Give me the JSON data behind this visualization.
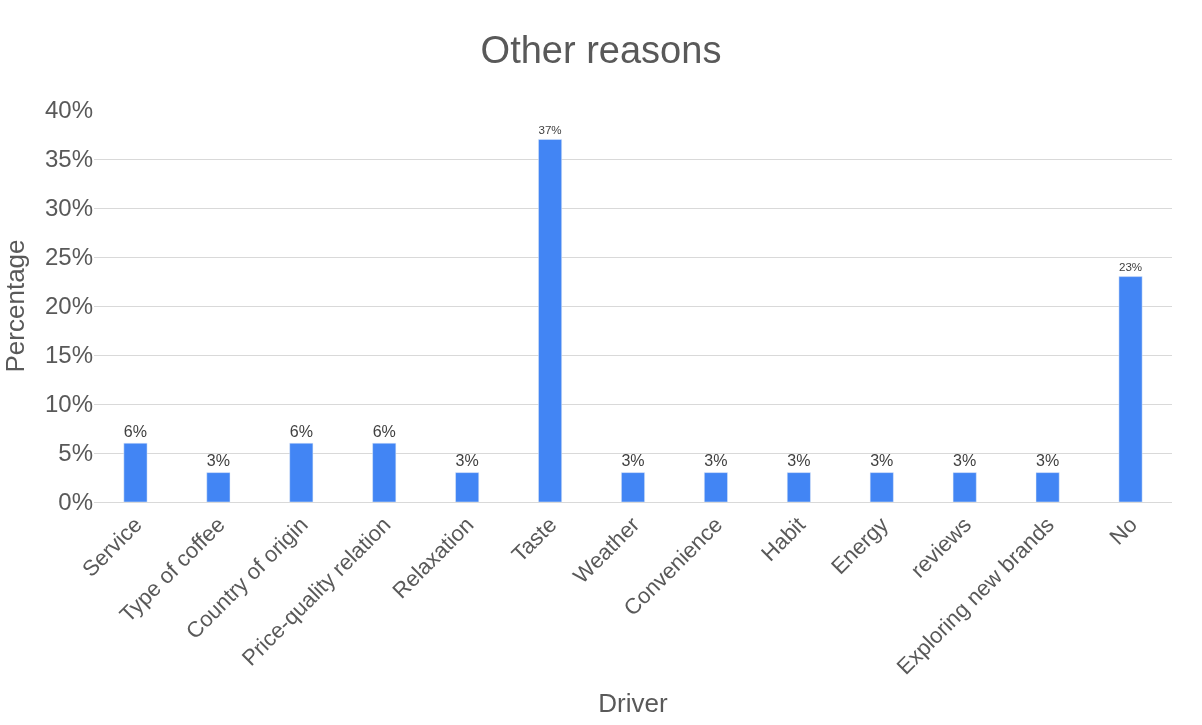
{
  "chart_data": {
    "type": "bar",
    "title": "Other reasons",
    "xlabel": "Driver",
    "ylabel": "Percentage",
    "categories": [
      "Service",
      "Type of coffee",
      "Country of origin",
      "Price-quality relation",
      "Relaxation",
      "Taste",
      "Weather",
      "Convenience",
      "Habit",
      "Energy",
      "reviews",
      "Exploring new brands",
      "No"
    ],
    "values": [
      6,
      3,
      6,
      6,
      3,
      37,
      3,
      3,
      3,
      3,
      3,
      3,
      23
    ],
    "value_labels": [
      "6%",
      "3%",
      "6%",
      "6%",
      "3%",
      "37%",
      "3%",
      "3%",
      "3%",
      "3%",
      "3%",
      "3%",
      "23%"
    ],
    "color": "#4285f4",
    "ylim": [
      0,
      40
    ],
    "yticks": [
      {
        "value": 0,
        "label": "0%"
      },
      {
        "value": 5,
        "label": "5%"
      },
      {
        "value": 10,
        "label": "10%"
      },
      {
        "value": 15,
        "label": "15%"
      },
      {
        "value": 20,
        "label": "20%"
      },
      {
        "value": 25,
        "label": "25%"
      },
      {
        "value": 30,
        "label": "30%"
      },
      {
        "value": 35,
        "label": "35%"
      },
      {
        "value": 40,
        "label": "40%"
      }
    ],
    "grid": "y",
    "legend": false
  }
}
